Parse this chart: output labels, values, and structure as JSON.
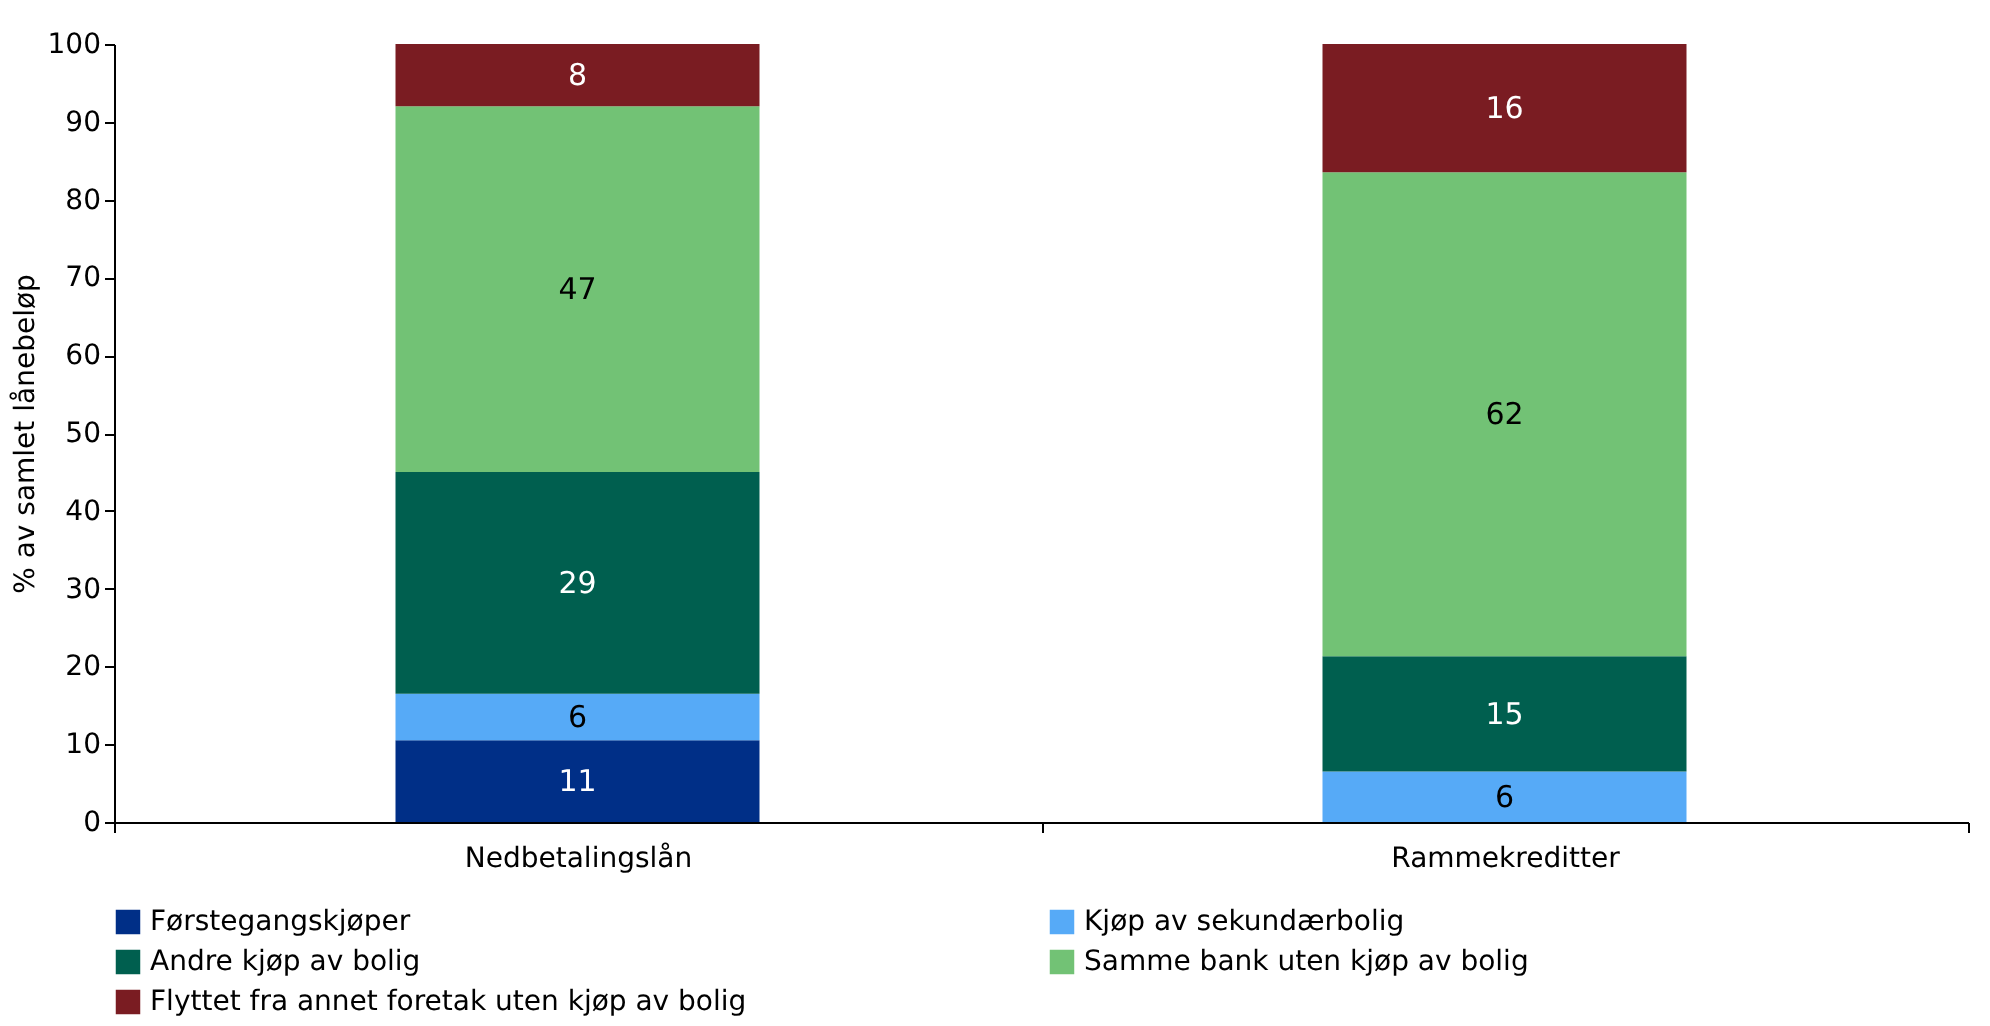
{
  "chart_data": {
    "type": "bar",
    "stacked": true,
    "ylabel": "% av samlet lånebeløp",
    "categories": [
      "Nedbetalingslån",
      "Rammekreditter"
    ],
    "series": [
      {
        "name": "Førstegangskjøper",
        "color": "#002f87",
        "values": [
          10.5,
          0
        ],
        "value_labels": [
          "11",
          null
        ]
      },
      {
        "name": "Kjøp av sekundærbolig",
        "color": "#56aaf7",
        "values": [
          6,
          6.5
        ],
        "value_labels": [
          "6",
          "6"
        ]
      },
      {
        "name": "Andre kjøp av bolig",
        "color": "#005f4f",
        "values": [
          28.5,
          14.8
        ],
        "value_labels": [
          "29",
          "15"
        ]
      },
      {
        "name": "Samme bank uten kjøp av bolig",
        "color": "#72c275",
        "values": [
          47,
          62.2
        ],
        "value_labels": [
          "47",
          "62"
        ]
      },
      {
        "name": "Flyttet fra annet foretak uten kjøp av bolig",
        "color": "#7a1c22",
        "values": [
          8,
          16.5
        ],
        "value_labels": [
          "8",
          "16"
        ]
      }
    ],
    "ylim": [
      0,
      100
    ],
    "yticks": [
      0,
      10,
      20,
      30,
      40,
      50,
      60,
      70,
      80,
      90,
      100
    ],
    "grid": false,
    "legend": "bottom"
  }
}
